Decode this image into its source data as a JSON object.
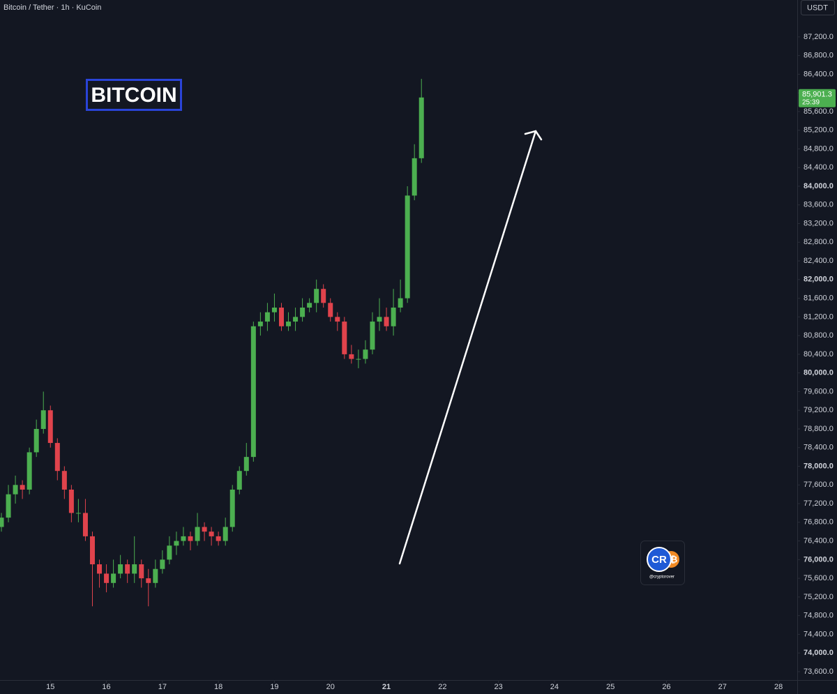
{
  "chart_data": {
    "type": "candlestick",
    "title": "Bitcoin / Tether · 1h · KuCoin",
    "currency": "USDT",
    "annotation": "BITCOIN",
    "last_price_label": "85,901.3",
    "countdown": "25:39",
    "up_color": "#4caf50",
    "down_color": "#e0434c",
    "grid": false,
    "xlim": [
      14.1,
      28.335
    ],
    "xticks": [
      15,
      16,
      17,
      18,
      19,
      20,
      21,
      22,
      23,
      24,
      25,
      26,
      27,
      28
    ],
    "ylim": [
      73420,
      87990
    ],
    "yticks": [
      {
        "value": 73600,
        "label": "73,600.0"
      },
      {
        "value": 74000,
        "label": "74,000.0"
      },
      {
        "value": 74400,
        "label": "74,400.0"
      },
      {
        "value": 74800,
        "label": "74,800.0"
      },
      {
        "value": 75200,
        "label": "75,200.0"
      },
      {
        "value": 75600,
        "label": "75,600.0"
      },
      {
        "value": 76000,
        "label": "76,000.0"
      },
      {
        "value": 76400,
        "label": "76,400.0"
      },
      {
        "value": 76800,
        "label": "76,800.0"
      },
      {
        "value": 77200,
        "label": "77,200.0"
      },
      {
        "value": 77600,
        "label": "77,600.0"
      },
      {
        "value": 78000,
        "label": "78,000.0"
      },
      {
        "value": 78400,
        "label": "78,400.0"
      },
      {
        "value": 78800,
        "label": "78,800.0"
      },
      {
        "value": 79200,
        "label": "79,200.0"
      },
      {
        "value": 79600,
        "label": "79,600.0"
      },
      {
        "value": 80000,
        "label": "80,000.0"
      },
      {
        "value": 80400,
        "label": "80,400.0"
      },
      {
        "value": 80800,
        "label": "80,800.0"
      },
      {
        "value": 81200,
        "label": "81,200.0"
      },
      {
        "value": 81600,
        "label": "81,600.0"
      },
      {
        "value": 82000,
        "label": "82,000.0"
      },
      {
        "value": 82400,
        "label": "82,400.0"
      },
      {
        "value": 82800,
        "label": "82,800.0"
      },
      {
        "value": 83200,
        "label": "83,200.0"
      },
      {
        "value": 83600,
        "label": "83,600.0"
      },
      {
        "value": 84000,
        "label": "84,000.0"
      },
      {
        "value": 84400,
        "label": "84,400.0"
      },
      {
        "value": 84800,
        "label": "84,800.0"
      },
      {
        "value": 85200,
        "label": "85,200.0"
      },
      {
        "value": 85600,
        "label": "85,600.0"
      },
      {
        "value": 86000,
        "label": "86,000.0"
      },
      {
        "value": 86400,
        "label": "86,400.0"
      },
      {
        "value": 86800,
        "label": "86,800.0"
      },
      {
        "value": 87200,
        "label": "87,200.0"
      }
    ],
    "x": [
      14.125,
      14.25,
      14.375,
      14.5,
      14.625,
      14.75,
      14.875,
      15,
      15.125,
      15.25,
      15.375,
      15.5,
      15.625,
      15.75,
      15.875,
      16,
      16.125,
      16.25,
      16.375,
      16.5,
      16.625,
      16.75,
      16.875,
      17,
      17.125,
      17.25,
      17.375,
      17.5,
      17.625,
      17.75,
      17.875,
      18,
      18.125,
      18.25,
      18.375,
      18.5,
      18.625,
      18.75,
      18.875,
      19,
      19.125,
      19.25,
      19.375,
      19.5,
      19.625,
      19.75,
      19.875,
      20,
      20.125,
      20.25,
      20.375,
      20.5,
      20.625,
      20.75,
      20.875,
      21,
      21.125,
      21.25,
      21.375,
      21.5,
      21.625
    ],
    "open": [
      76700,
      76900,
      77400,
      77600,
      77500,
      78300,
      78800,
      79200,
      78500,
      77900,
      77500,
      77000,
      77000,
      76500,
      75900,
      75700,
      75500,
      75700,
      75900,
      75700,
      75900,
      75600,
      75500,
      75800,
      76000,
      76300,
      76400,
      76500,
      76400,
      76700,
      76600,
      76500,
      76400,
      76700,
      77500,
      77900,
      78200,
      81000,
      81100,
      81300,
      81400,
      81000,
      81100,
      81200,
      81400,
      81500,
      81800,
      81500,
      81200,
      81100,
      80400,
      80300,
      80300,
      80500,
      81100,
      81200,
      81000,
      81400,
      81600,
      83800,
      84600
    ],
    "high": [
      77000,
      77600,
      77800,
      77700,
      78400,
      79000,
      79600,
      79300,
      78600,
      78000,
      77600,
      77300,
      77300,
      76600,
      76000,
      75900,
      76000,
      76100,
      76000,
      76500,
      76000,
      75800,
      76000,
      76200,
      76500,
      76600,
      76700,
      76600,
      77000,
      76800,
      76700,
      76600,
      76900,
      77600,
      78000,
      78500,
      81100,
      81300,
      81500,
      81700,
      81500,
      81300,
      81400,
      81600,
      81600,
      82000,
      81900,
      81600,
      81300,
      81200,
      80600,
      80500,
      80700,
      81300,
      81600,
      81400,
      81800,
      82000,
      84000,
      84900,
      86300
    ],
    "low": [
      76600,
      76800,
      77200,
      77300,
      77400,
      78200,
      78700,
      78400,
      77700,
      77300,
      76800,
      76800,
      76400,
      75000,
      75400,
      75300,
      75400,
      75600,
      75500,
      75500,
      75400,
      75000,
      75400,
      75700,
      75900,
      76100,
      76300,
      76200,
      76300,
      76400,
      76300,
      76300,
      76300,
      76600,
      77400,
      77800,
      78100,
      80800,
      80900,
      81100,
      80900,
      80900,
      80900,
      81100,
      81300,
      81300,
      81400,
      81100,
      80900,
      80300,
      80200,
      80100,
      80200,
      80400,
      80900,
      80900,
      80800,
      81300,
      81500,
      83700,
      84500
    ],
    "close": [
      76900,
      77400,
      77600,
      77500,
      78300,
      78800,
      79200,
      78500,
      77900,
      77500,
      77000,
      77000,
      76500,
      75900,
      75700,
      75500,
      75700,
      75900,
      75700,
      75900,
      75600,
      75500,
      75800,
      76000,
      76300,
      76400,
      76500,
      76400,
      76700,
      76600,
      76500,
      76400,
      76700,
      77500,
      77900,
      78200,
      81000,
      81100,
      81300,
      81400,
      81000,
      81100,
      81200,
      81400,
      81500,
      81800,
      81500,
      81200,
      81100,
      80400,
      80300,
      80300,
      80500,
      81100,
      81200,
      81000,
      81400,
      81600,
      83800,
      84600,
      85901.3
    ]
  },
  "watermark": {
    "logo": "CR",
    "coin": "₿",
    "handle": "@cryptorover"
  }
}
